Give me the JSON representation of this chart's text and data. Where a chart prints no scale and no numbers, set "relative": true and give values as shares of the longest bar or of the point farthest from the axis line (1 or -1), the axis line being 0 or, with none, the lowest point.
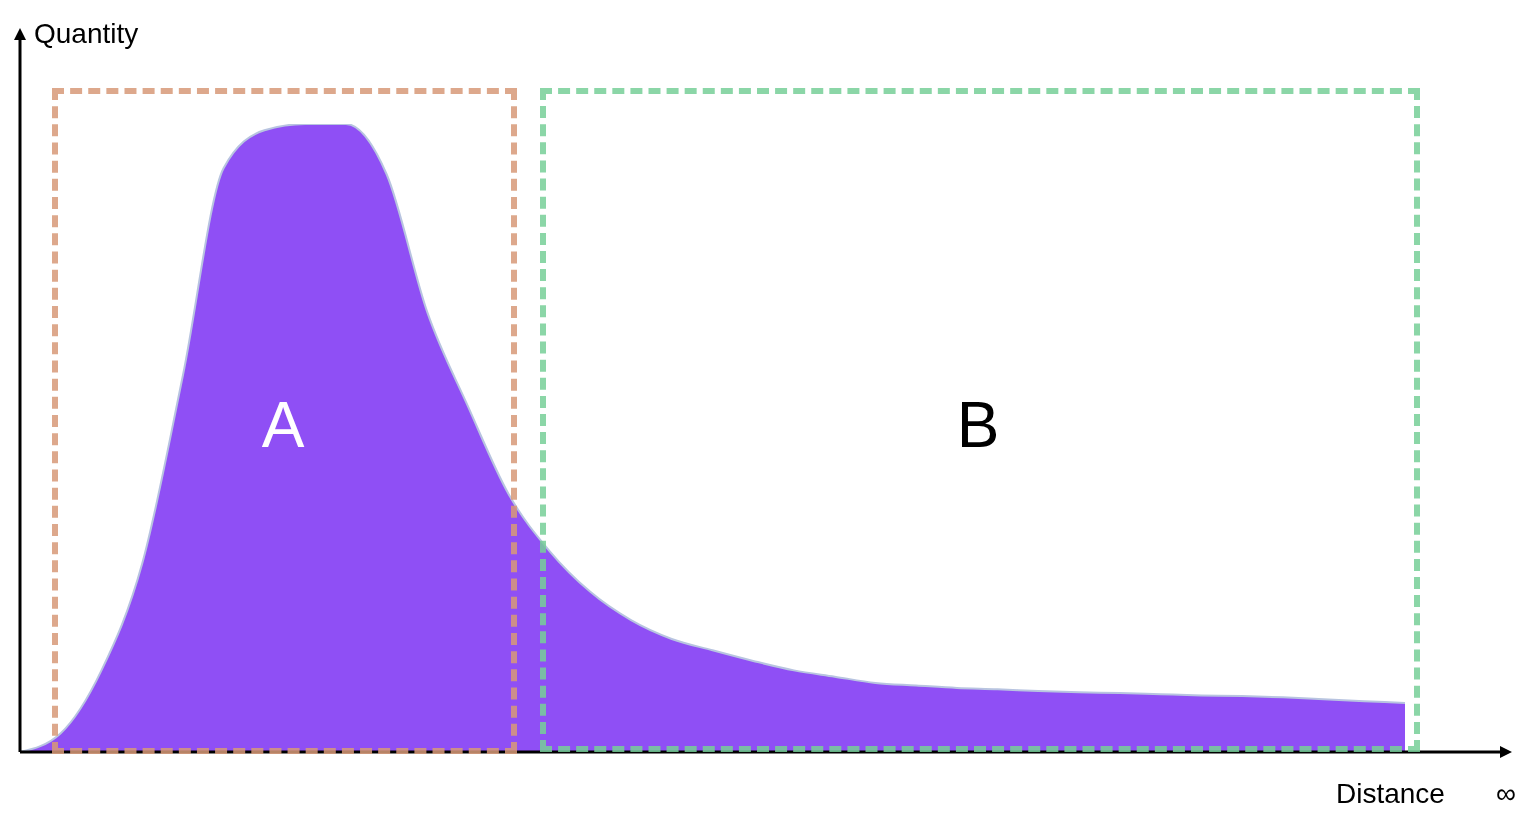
{
  "chart_data": {
    "type": "area",
    "relative": true,
    "xlabel": "Distance",
    "ylabel": "Quantity",
    "annotations": [
      "A",
      "B",
      "∞"
    ],
    "categories": [
      null,
      null,
      null,
      null,
      null,
      null,
      null,
      null,
      null,
      null,
      null,
      null,
      null,
      null,
      null,
      null,
      null,
      null,
      null,
      null,
      null,
      null,
      null,
      null,
      null,
      null,
      null,
      null,
      null,
      null,
      null,
      null,
      null,
      null,
      null
    ],
    "series": [
      {
        "color": "#8f4ff5",
        "values": [
          0,
          0.03,
          0.13,
          0.3,
          0.6,
          0.93,
          0.99,
          1,
          1,
          0.92,
          0.7,
          0.55,
          0.41,
          0.32,
          0.255,
          0.21,
          0.18,
          0.162,
          0.145,
          0.13,
          0.12,
          0.11,
          0.106,
          0.102,
          0.1,
          0.097,
          0.095,
          0.094,
          0.092,
          0.09,
          0.089,
          0.087,
          0.084,
          0.081,
          0.078
        ]
      }
    ],
    "grid": false,
    "legend": false
  }
}
